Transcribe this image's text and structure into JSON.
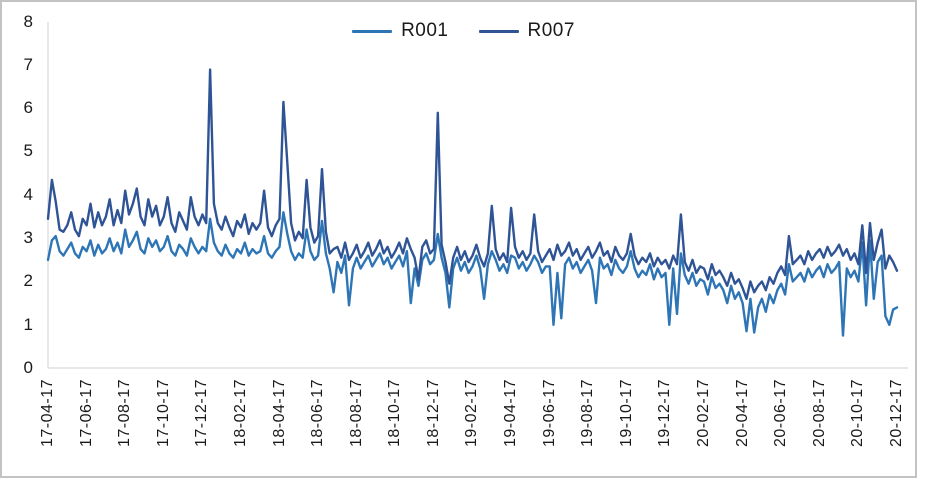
{
  "chart_data": {
    "type": "line",
    "title": "",
    "xlabel": "",
    "ylabel": "",
    "ylim": [
      0,
      8
    ],
    "y_ticks": [
      0,
      1,
      2,
      3,
      4,
      5,
      6,
      7,
      8
    ],
    "grid": false,
    "legend_position": "top-center",
    "x_tick_labels": [
      "17-04-17",
      "17-06-17",
      "17-08-17",
      "17-10-17",
      "17-12-17",
      "18-02-17",
      "18-04-17",
      "18-06-17",
      "18-08-17",
      "18-10-17",
      "18-12-17",
      "19-02-17",
      "19-04-17",
      "19-06-17",
      "19-08-17",
      "19-10-17",
      "19-12-17",
      "20-02-17",
      "20-04-17",
      "20-06-17",
      "20-08-17",
      "20-10-17",
      "20-12-17"
    ],
    "x_note": "series values sampled ~5 per month from 17-04-17 through 20-12-17",
    "series": [
      {
        "name": "R001",
        "color": "#2E75B6",
        "values": [
          2.5,
          2.95,
          3.05,
          2.7,
          2.6,
          2.75,
          2.9,
          2.65,
          2.55,
          2.8,
          2.7,
          2.95,
          2.6,
          2.85,
          2.65,
          2.75,
          3.0,
          2.7,
          2.9,
          2.65,
          3.2,
          2.8,
          2.95,
          3.15,
          2.75,
          2.65,
          3.0,
          2.8,
          2.95,
          2.7,
          2.8,
          3.05,
          2.7,
          2.6,
          2.85,
          2.75,
          2.6,
          3.0,
          2.8,
          2.65,
          2.8,
          2.7,
          3.45,
          2.9,
          2.7,
          2.6,
          2.85,
          2.65,
          2.55,
          2.75,
          2.65,
          2.9,
          2.6,
          2.75,
          2.65,
          2.7,
          3.05,
          2.65,
          2.55,
          2.7,
          2.8,
          3.6,
          3.1,
          2.7,
          2.5,
          2.65,
          2.55,
          3.2,
          2.7,
          2.5,
          2.6,
          3.4,
          2.65,
          2.3,
          1.75,
          2.45,
          2.2,
          2.6,
          1.45,
          2.3,
          2.55,
          2.3,
          2.45,
          2.6,
          2.35,
          2.5,
          2.65,
          2.4,
          2.55,
          2.3,
          2.45,
          2.6,
          2.35,
          2.7,
          1.5,
          2.3,
          1.9,
          2.5,
          2.65,
          2.4,
          2.5,
          3.1,
          2.55,
          2.2,
          1.4,
          2.3,
          2.55,
          2.25,
          2.45,
          2.2,
          2.35,
          2.6,
          2.3,
          1.6,
          2.4,
          2.7,
          2.5,
          2.25,
          2.4,
          2.2,
          2.6,
          2.55,
          2.3,
          2.45,
          2.25,
          2.4,
          2.6,
          2.45,
          2.2,
          2.35,
          2.35,
          1.0,
          2.2,
          1.15,
          2.4,
          2.55,
          2.3,
          2.45,
          2.2,
          2.35,
          2.5,
          2.25,
          1.5,
          2.55,
          2.3,
          2.4,
          2.15,
          2.5,
          2.3,
          2.2,
          2.35,
          2.7,
          2.3,
          2.1,
          2.25,
          2.15,
          2.4,
          2.05,
          2.3,
          2.1,
          2.2,
          1.0,
          2.3,
          1.25,
          2.65,
          2.15,
          1.95,
          2.2,
          1.9,
          2.05,
          2.0,
          1.7,
          2.1,
          1.85,
          1.95,
          1.8,
          1.5,
          1.9,
          1.6,
          1.75,
          1.5,
          0.85,
          1.6,
          0.82,
          1.4,
          1.6,
          1.3,
          1.7,
          1.5,
          1.8,
          1.95,
          1.7,
          2.4,
          2.0,
          2.1,
          2.2,
          2.0,
          2.3,
          2.1,
          2.25,
          2.35,
          2.1,
          2.4,
          2.2,
          2.3,
          2.45,
          0.75,
          2.3,
          2.1,
          2.25,
          2.0,
          2.9,
          1.45,
          2.95,
          1.6,
          2.45,
          2.6,
          1.2,
          1.0,
          1.35,
          1.4
        ]
      },
      {
        "name": "R007",
        "color": "#2F5496",
        "values": [
          3.45,
          4.35,
          3.85,
          3.2,
          3.15,
          3.3,
          3.6,
          3.2,
          3.05,
          3.45,
          3.3,
          3.8,
          3.25,
          3.6,
          3.3,
          3.5,
          3.9,
          3.3,
          3.65,
          3.35,
          4.1,
          3.55,
          3.8,
          4.15,
          3.5,
          3.3,
          3.9,
          3.5,
          3.75,
          3.3,
          3.5,
          3.95,
          3.35,
          3.15,
          3.6,
          3.4,
          3.2,
          3.95,
          3.5,
          3.3,
          3.55,
          3.35,
          6.9,
          3.8,
          3.35,
          3.2,
          3.5,
          3.25,
          3.05,
          3.4,
          3.25,
          3.55,
          3.1,
          3.35,
          3.2,
          3.35,
          4.1,
          3.25,
          3.05,
          3.3,
          3.45,
          6.15,
          4.75,
          3.35,
          2.95,
          3.15,
          3.0,
          4.35,
          3.25,
          2.9,
          3.05,
          4.6,
          3.15,
          2.65,
          2.75,
          2.8,
          2.55,
          2.9,
          2.5,
          2.65,
          2.85,
          2.55,
          2.7,
          2.9,
          2.6,
          2.75,
          2.95,
          2.65,
          2.8,
          2.55,
          2.7,
          2.9,
          2.65,
          3.0,
          2.75,
          2.55,
          2.05,
          2.8,
          2.95,
          2.65,
          2.75,
          5.9,
          2.85,
          2.45,
          1.95,
          2.55,
          2.8,
          2.5,
          2.7,
          2.45,
          2.6,
          2.85,
          2.55,
          2.35,
          2.65,
          3.75,
          2.75,
          2.5,
          2.65,
          2.45,
          3.7,
          2.8,
          2.55,
          2.7,
          2.5,
          2.65,
          3.55,
          2.7,
          2.45,
          2.6,
          2.75,
          2.5,
          2.85,
          2.6,
          2.7,
          2.9,
          2.6,
          2.75,
          2.5,
          2.65,
          2.8,
          2.55,
          2.7,
          2.9,
          2.6,
          2.7,
          2.45,
          2.8,
          2.6,
          2.5,
          2.65,
          3.1,
          2.6,
          2.4,
          2.55,
          2.45,
          2.65,
          2.35,
          2.55,
          2.4,
          2.5,
          2.3,
          2.6,
          2.4,
          3.55,
          2.45,
          2.25,
          2.5,
          2.2,
          2.35,
          2.3,
          2.05,
          2.4,
          2.15,
          2.25,
          2.1,
          1.9,
          2.2,
          1.95,
          2.05,
          1.85,
          1.6,
          2.0,
          1.75,
          1.9,
          2.0,
          1.8,
          2.1,
          1.95,
          2.2,
          2.35,
          2.15,
          3.05,
          2.4,
          2.5,
          2.6,
          2.4,
          2.7,
          2.5,
          2.65,
          2.75,
          2.55,
          2.8,
          2.6,
          2.7,
          2.85,
          2.6,
          2.75,
          2.5,
          2.65,
          2.4,
          3.3,
          2.2,
          3.35,
          2.5,
          2.9,
          3.2,
          2.3,
          2.6,
          2.45,
          2.25
        ]
      }
    ]
  },
  "colors": {
    "axis_line": "#D9D9D9",
    "text": "#1A1A1A",
    "frame_border": "#C3C3C3",
    "background": "#FFFFFF"
  }
}
